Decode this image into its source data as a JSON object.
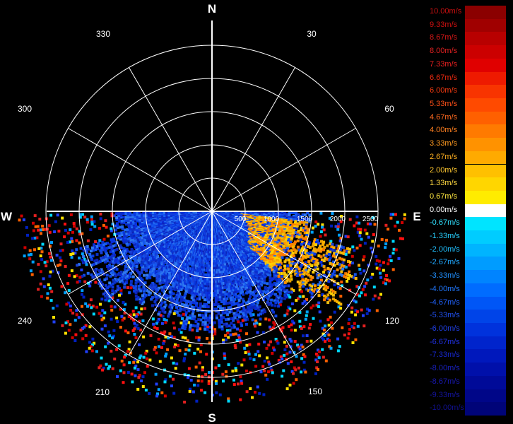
{
  "cardinals": {
    "north": "N",
    "south": "S",
    "east": "E",
    "west": "W"
  },
  "bearings": [
    "30",
    "60",
    "120",
    "150",
    "210",
    "240",
    "300",
    "330"
  ],
  "range_labels": [
    "500",
    "1000",
    "1500",
    "2000",
    "2500"
  ],
  "legend": [
    {
      "label": "10.00m/s",
      "color": "#8b0000",
      "text_color": "#c81010"
    },
    {
      "label": "9.33m/s",
      "color": "#a00000",
      "text_color": "#d01010"
    },
    {
      "label": "8.67m/s",
      "color": "#b80000",
      "text_color": "#d81818"
    },
    {
      "label": "8.00m/s",
      "color": "#cc0000",
      "text_color": "#e02020"
    },
    {
      "label": "7.33m/s",
      "color": "#e00000",
      "text_color": "#e82020"
    },
    {
      "label": "6.67m/s",
      "color": "#ee1a00",
      "text_color": "#f02a10"
    },
    {
      "label": "6.00m/s",
      "color": "#f83400",
      "text_color": "#f43a10"
    },
    {
      "label": "5.33m/s",
      "color": "#ff4a00",
      "text_color": "#ff5018"
    },
    {
      "label": "4.67m/s",
      "color": "#ff6000",
      "text_color": "#ff6a20"
    },
    {
      "label": "4.00m/s",
      "color": "#ff7a00",
      "text_color": "#ff8020"
    },
    {
      "label": "3.33m/s",
      "color": "#ff9200",
      "text_color": "#ff9a20"
    },
    {
      "label": "2.67m/s",
      "color": "#ffaa00",
      "text_color": "#ffb020"
    },
    {
      "label": "2.00m/s",
      "color": "#ffc000",
      "text_color": "#ffc830"
    },
    {
      "label": "1.33m/s",
      "color": "#ffd600",
      "text_color": "#ffd840"
    },
    {
      "label": "0.67m/s",
      "color": "#ffec00",
      "text_color": "#ffe840"
    },
    {
      "label": "0.00m/s",
      "color": "#ffffff",
      "text_color": "#ffffff"
    },
    {
      "label": "-0.67m/s",
      "color": "#00e4ff",
      "text_color": "#30e0ff"
    },
    {
      "label": "-1.33m/s",
      "color": "#00ccff",
      "text_color": "#28d0ff"
    },
    {
      "label": "-2.00m/s",
      "color": "#00b4ff",
      "text_color": "#20c0ff"
    },
    {
      "label": "-2.67m/s",
      "color": "#009cff",
      "text_color": "#20a8ff"
    },
    {
      "label": "-3.33m/s",
      "color": "#0084ff",
      "text_color": "#2090ff"
    },
    {
      "label": "-4.00m/s",
      "color": "#006cff",
      "text_color": "#2078ff"
    },
    {
      "label": "-4.67m/s",
      "color": "#0056f6",
      "text_color": "#2060f8"
    },
    {
      "label": "-5.33m/s",
      "color": "#0044e8",
      "text_color": "#2050f0"
    },
    {
      "label": "-6.00m/s",
      "color": "#0032dc",
      "text_color": "#2040e8"
    },
    {
      "label": "-6.67m/s",
      "color": "#0024cc",
      "text_color": "#2030e0"
    },
    {
      "label": "-7.33m/s",
      "color": "#0018bc",
      "text_color": "#1828d0"
    },
    {
      "label": "-8.00m/s",
      "color": "#0010aa",
      "text_color": "#1820c0"
    },
    {
      "label": "-8.67m/s",
      "color": "#000a98",
      "text_color": "#1818b0"
    },
    {
      "label": "-9.33m/s",
      "color": "#000688",
      "text_color": "#1414a0"
    },
    {
      "label": "-10.00m/s",
      "color": "#000478",
      "text_color": "#101090"
    }
  ]
}
